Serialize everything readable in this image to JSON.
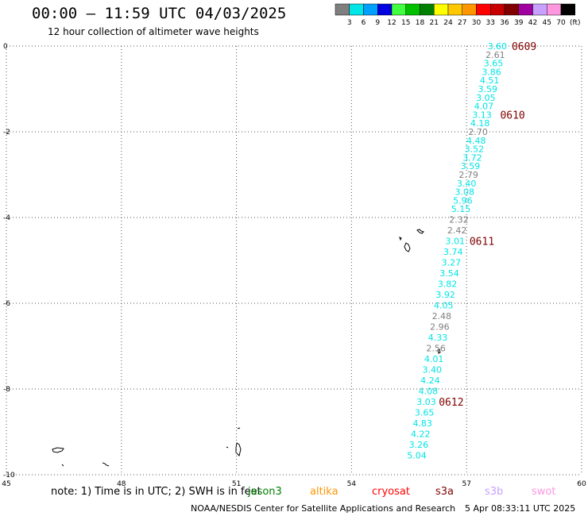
{
  "header": {
    "title": "00:00 – 11:59 UTC 04/03/2025",
    "subtitle": "12 hour collection of altimeter wave heights"
  },
  "colorbar": {
    "unit": "(ft)",
    "ticks": [
      "3",
      "6",
      "9",
      "12",
      "15",
      "18",
      "21",
      "24",
      "27",
      "30",
      "33",
      "36",
      "39",
      "42",
      "45",
      "70"
    ],
    "colors": [
      "#7f7f7f",
      "#00e5e5",
      "#00a0ff",
      "#0000e0",
      "#40ff40",
      "#00c000",
      "#008000",
      "#ffff00",
      "#ffc800",
      "#ff9600",
      "#ff0000",
      "#c80000",
      "#800000",
      "#a000a0",
      "#c8a0ff",
      "#ff96e0",
      "#000000"
    ]
  },
  "chart_data": {
    "type": "scatter",
    "title": "00:00 – 11:59 UTC 04/03/2025",
    "subtitle": "12 hour collection of altimeter wave heights",
    "xlim": [
      45,
      60
    ],
    "ylim": [
      -10,
      0
    ],
    "x_ticks": [
      "45",
      "48",
      "51",
      "54",
      "57",
      "60"
    ],
    "y_ticks": [
      "0",
      "-2",
      "-4",
      "-6",
      "-8",
      "-10"
    ],
    "grid": true,
    "points": [
      {
        "lon": 57.8,
        "lat": 0.0,
        "value": "3.60",
        "color": "#00e5e5"
      },
      {
        "lon": 57.75,
        "lat": -0.2,
        "value": "2.61",
        "color": "#7f7f7f"
      },
      {
        "lon": 57.7,
        "lat": -0.4,
        "value": "3.65",
        "color": "#00e5e5"
      },
      {
        "lon": 57.65,
        "lat": -0.6,
        "value": "3.86",
        "color": "#00e5e5"
      },
      {
        "lon": 57.6,
        "lat": -0.8,
        "value": "4.51",
        "color": "#00e5e5"
      },
      {
        "lon": 57.55,
        "lat": -1.0,
        "value": "3.59",
        "color": "#00e5e5"
      },
      {
        "lon": 57.5,
        "lat": -1.2,
        "value": "3.05",
        "color": "#00e5e5"
      },
      {
        "lon": 57.45,
        "lat": -1.4,
        "value": "4.07",
        "color": "#00e5e5"
      },
      {
        "lon": 57.4,
        "lat": -1.6,
        "value": "3.13",
        "color": "#00e5e5"
      },
      {
        "lon": 57.35,
        "lat": -1.8,
        "value": "4.18",
        "color": "#00e5e5"
      },
      {
        "lon": 57.3,
        "lat": -2.0,
        "value": "2.70",
        "color": "#7f7f7f"
      },
      {
        "lon": 57.25,
        "lat": -2.2,
        "value": "4.48",
        "color": "#00e5e5"
      },
      {
        "lon": 57.2,
        "lat": -2.4,
        "value": "3.52",
        "color": "#00e5e5"
      },
      {
        "lon": 57.15,
        "lat": -2.6,
        "value": "3.72",
        "color": "#00e5e5"
      },
      {
        "lon": 57.1,
        "lat": -2.8,
        "value": "3.59",
        "color": "#00e5e5"
      },
      {
        "lon": 57.05,
        "lat": -3.0,
        "value": "2.79",
        "color": "#7f7f7f"
      },
      {
        "lon": 57.0,
        "lat": -3.2,
        "value": "3.40",
        "color": "#00e5e5"
      },
      {
        "lon": 56.95,
        "lat": -3.4,
        "value": "3.08",
        "color": "#00e5e5"
      },
      {
        "lon": 56.9,
        "lat": -3.6,
        "value": "5.96",
        "color": "#00e5e5"
      },
      {
        "lon": 56.85,
        "lat": -3.8,
        "value": "5.15",
        "color": "#00e5e5"
      },
      {
        "lon": 56.8,
        "lat": -4.05,
        "value": "2.32",
        "color": "#7f7f7f"
      },
      {
        "lon": 56.75,
        "lat": -4.3,
        "value": "2.42",
        "color": "#7f7f7f"
      },
      {
        "lon": 56.7,
        "lat": -4.55,
        "value": "3.01",
        "color": "#00e5e5"
      },
      {
        "lon": 56.65,
        "lat": -4.8,
        "value": "3.74",
        "color": "#00e5e5"
      },
      {
        "lon": 56.6,
        "lat": -5.05,
        "value": "3.27",
        "color": "#00e5e5"
      },
      {
        "lon": 56.55,
        "lat": -5.3,
        "value": "3.54",
        "color": "#00e5e5"
      },
      {
        "lon": 56.5,
        "lat": -5.55,
        "value": "3.82",
        "color": "#00e5e5"
      },
      {
        "lon": 56.45,
        "lat": -5.8,
        "value": "3.92",
        "color": "#00e5e5"
      },
      {
        "lon": 56.4,
        "lat": -6.05,
        "value": "4.05",
        "color": "#00e5e5"
      },
      {
        "lon": 56.35,
        "lat": -6.3,
        "value": "2.48",
        "color": "#7f7f7f"
      },
      {
        "lon": 56.3,
        "lat": -6.55,
        "value": "2.96",
        "color": "#7f7f7f"
      },
      {
        "lon": 56.25,
        "lat": -6.8,
        "value": "4.33",
        "color": "#00e5e5"
      },
      {
        "lon": 56.2,
        "lat": -7.05,
        "value": "2.56",
        "color": "#7f7f7f"
      },
      {
        "lon": 56.15,
        "lat": -7.3,
        "value": "4.01",
        "color": "#00e5e5"
      },
      {
        "lon": 56.1,
        "lat": -7.55,
        "value": "3.40",
        "color": "#00e5e5"
      },
      {
        "lon": 56.05,
        "lat": -7.8,
        "value": "4.24",
        "color": "#00e5e5"
      },
      {
        "lon": 56.0,
        "lat": -8.05,
        "value": "4.08",
        "color": "#00e5e5"
      },
      {
        "lon": 55.95,
        "lat": -8.3,
        "value": "3.03",
        "color": "#00e5e5"
      },
      {
        "lon": 55.9,
        "lat": -8.55,
        "value": "3.65",
        "color": "#00e5e5"
      },
      {
        "lon": 55.85,
        "lat": -8.8,
        "value": "4.83",
        "color": "#00e5e5"
      },
      {
        "lon": 55.8,
        "lat": -9.05,
        "value": "4.22",
        "color": "#00e5e5"
      },
      {
        "lon": 55.75,
        "lat": -9.3,
        "value": "3.26",
        "color": "#00e5e5"
      },
      {
        "lon": 55.7,
        "lat": -9.55,
        "value": "5.04",
        "color": "#00e5e5"
      }
    ],
    "time_labels": [
      {
        "lon": 58.5,
        "lat": 0.0,
        "text": "0609"
      },
      {
        "lon": 58.2,
        "lat": -1.6,
        "text": "0610"
      },
      {
        "lon": 57.4,
        "lat": -4.55,
        "text": "0611"
      },
      {
        "lon": 56.6,
        "lat": -8.3,
        "text": "0612"
      }
    ],
    "time_label_color": "#800000"
  },
  "footer": {
    "note": "note: 1) Time is in UTC; 2) SWH is in feet",
    "satellites": [
      {
        "name": "jason3",
        "color": "#008000"
      },
      {
        "name": "altika",
        "color": "#ff9600"
      },
      {
        "name": "cryosat",
        "color": "#ff0000"
      },
      {
        "name": "s3a",
        "color": "#800000"
      },
      {
        "name": "s3b",
        "color": "#c8a0ff"
      },
      {
        "name": "swot",
        "color": "#ff96e0"
      }
    ],
    "credit": "NOAA/NESDIS Center for Satellite Applications and Research",
    "timestamp": "5 Apr 08:33:11 UTC 2025"
  }
}
